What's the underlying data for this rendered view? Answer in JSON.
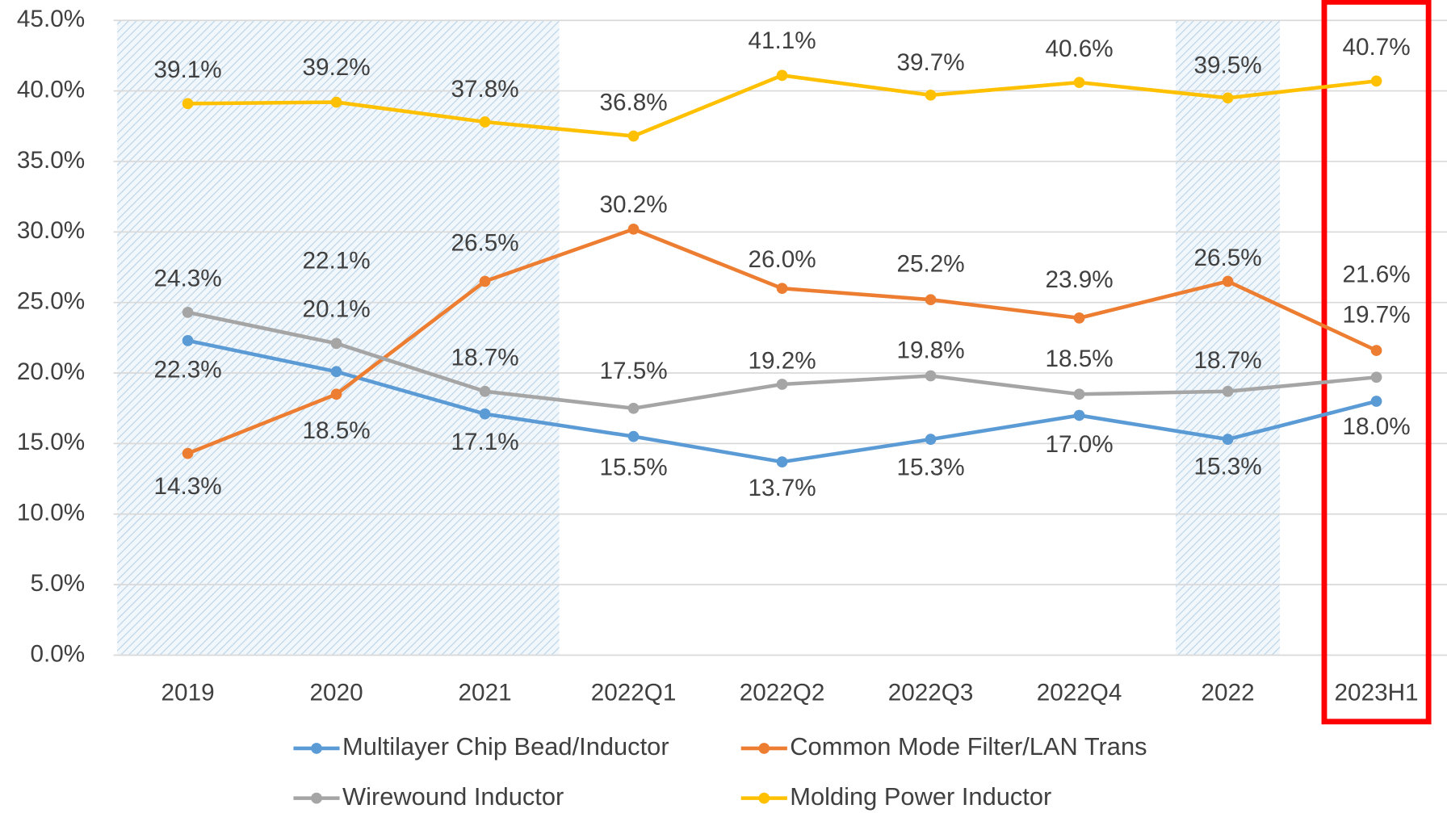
{
  "chart_data": {
    "type": "line",
    "categories": [
      "2019",
      "2020",
      "2021",
      "2022Q1",
      "2022Q2",
      "2022Q3",
      "2022Q4",
      "2022",
      "2023H1"
    ],
    "ylim": [
      0,
      45
    ],
    "yticks": [
      {
        "value": 0,
        "label": "0.0%"
      },
      {
        "value": 5,
        "label": "5.0%"
      },
      {
        "value": 10,
        "label": "10.0%"
      },
      {
        "value": 15,
        "label": "15.0%"
      },
      {
        "value": 20,
        "label": "20.0%"
      },
      {
        "value": 25,
        "label": "25.0%"
      },
      {
        "value": 30,
        "label": "30.0%"
      },
      {
        "value": 35,
        "label": "35.0%"
      },
      {
        "value": 40,
        "label": "40.0%"
      },
      {
        "value": 45,
        "label": "45.0%"
      }
    ],
    "grid": true,
    "series": [
      {
        "name": "Multilayer Chip Bead/Inductor",
        "color": "#5b9bd5",
        "values": [
          22.3,
          20.1,
          17.1,
          15.5,
          13.7,
          15.3,
          17.0,
          15.3,
          18.0
        ],
        "value_labels": [
          "22.3%",
          "20.1%",
          "17.1%",
          "15.5%",
          "13.7%",
          "15.3%",
          "17.0%",
          "15.3%",
          "18.0%"
        ]
      },
      {
        "name": "Common Mode Filter/LAN Trans",
        "color": "#ed7d31",
        "values": [
          14.3,
          18.5,
          26.5,
          30.2,
          26.0,
          25.2,
          23.9,
          26.5,
          21.6
        ],
        "value_labels": [
          "14.3%",
          "18.5%",
          "26.5%",
          "30.2%",
          "26.0%",
          "25.2%",
          "23.9%",
          "26.5%",
          "21.6%"
        ]
      },
      {
        "name": "Wirewound Inductor",
        "color": "#a5a5a5",
        "values": [
          24.3,
          22.1,
          18.7,
          17.5,
          19.2,
          19.8,
          18.5,
          18.7,
          19.7
        ],
        "value_labels": [
          "24.3%",
          "22.1%",
          "18.7%",
          "17.5%",
          "19.2%",
          "19.8%",
          "18.5%",
          "18.7%",
          "19.7%"
        ]
      },
      {
        "name": "Molding Power Inductor",
        "color": "#ffc000",
        "values": [
          39.1,
          39.2,
          37.8,
          36.8,
          41.1,
          39.7,
          40.6,
          39.5,
          40.7
        ],
        "value_labels": [
          "39.1%",
          "39.2%",
          "37.8%",
          "36.8%",
          "41.1%",
          "39.7%",
          "40.6%",
          "39.5%",
          "40.7%"
        ]
      }
    ]
  }
}
